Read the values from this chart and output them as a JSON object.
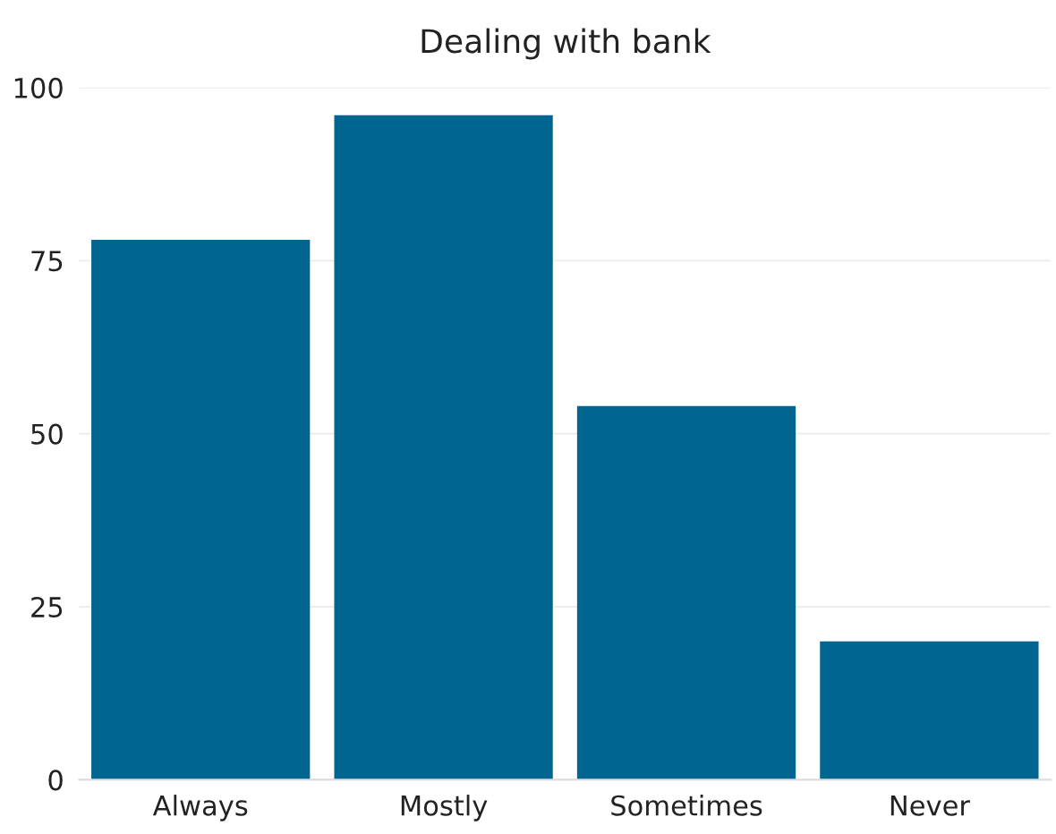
{
  "chart_data": {
    "type": "bar",
    "title": "Dealing with bank",
    "categories": [
      "Always",
      "Mostly",
      "Sometimes",
      "Never"
    ],
    "values": [
      78,
      96,
      54,
      20
    ],
    "color": "#00668f",
    "ylim": [
      0,
      100
    ],
    "yticks": [
      0,
      25,
      50,
      75,
      100
    ],
    "grid": "y"
  }
}
